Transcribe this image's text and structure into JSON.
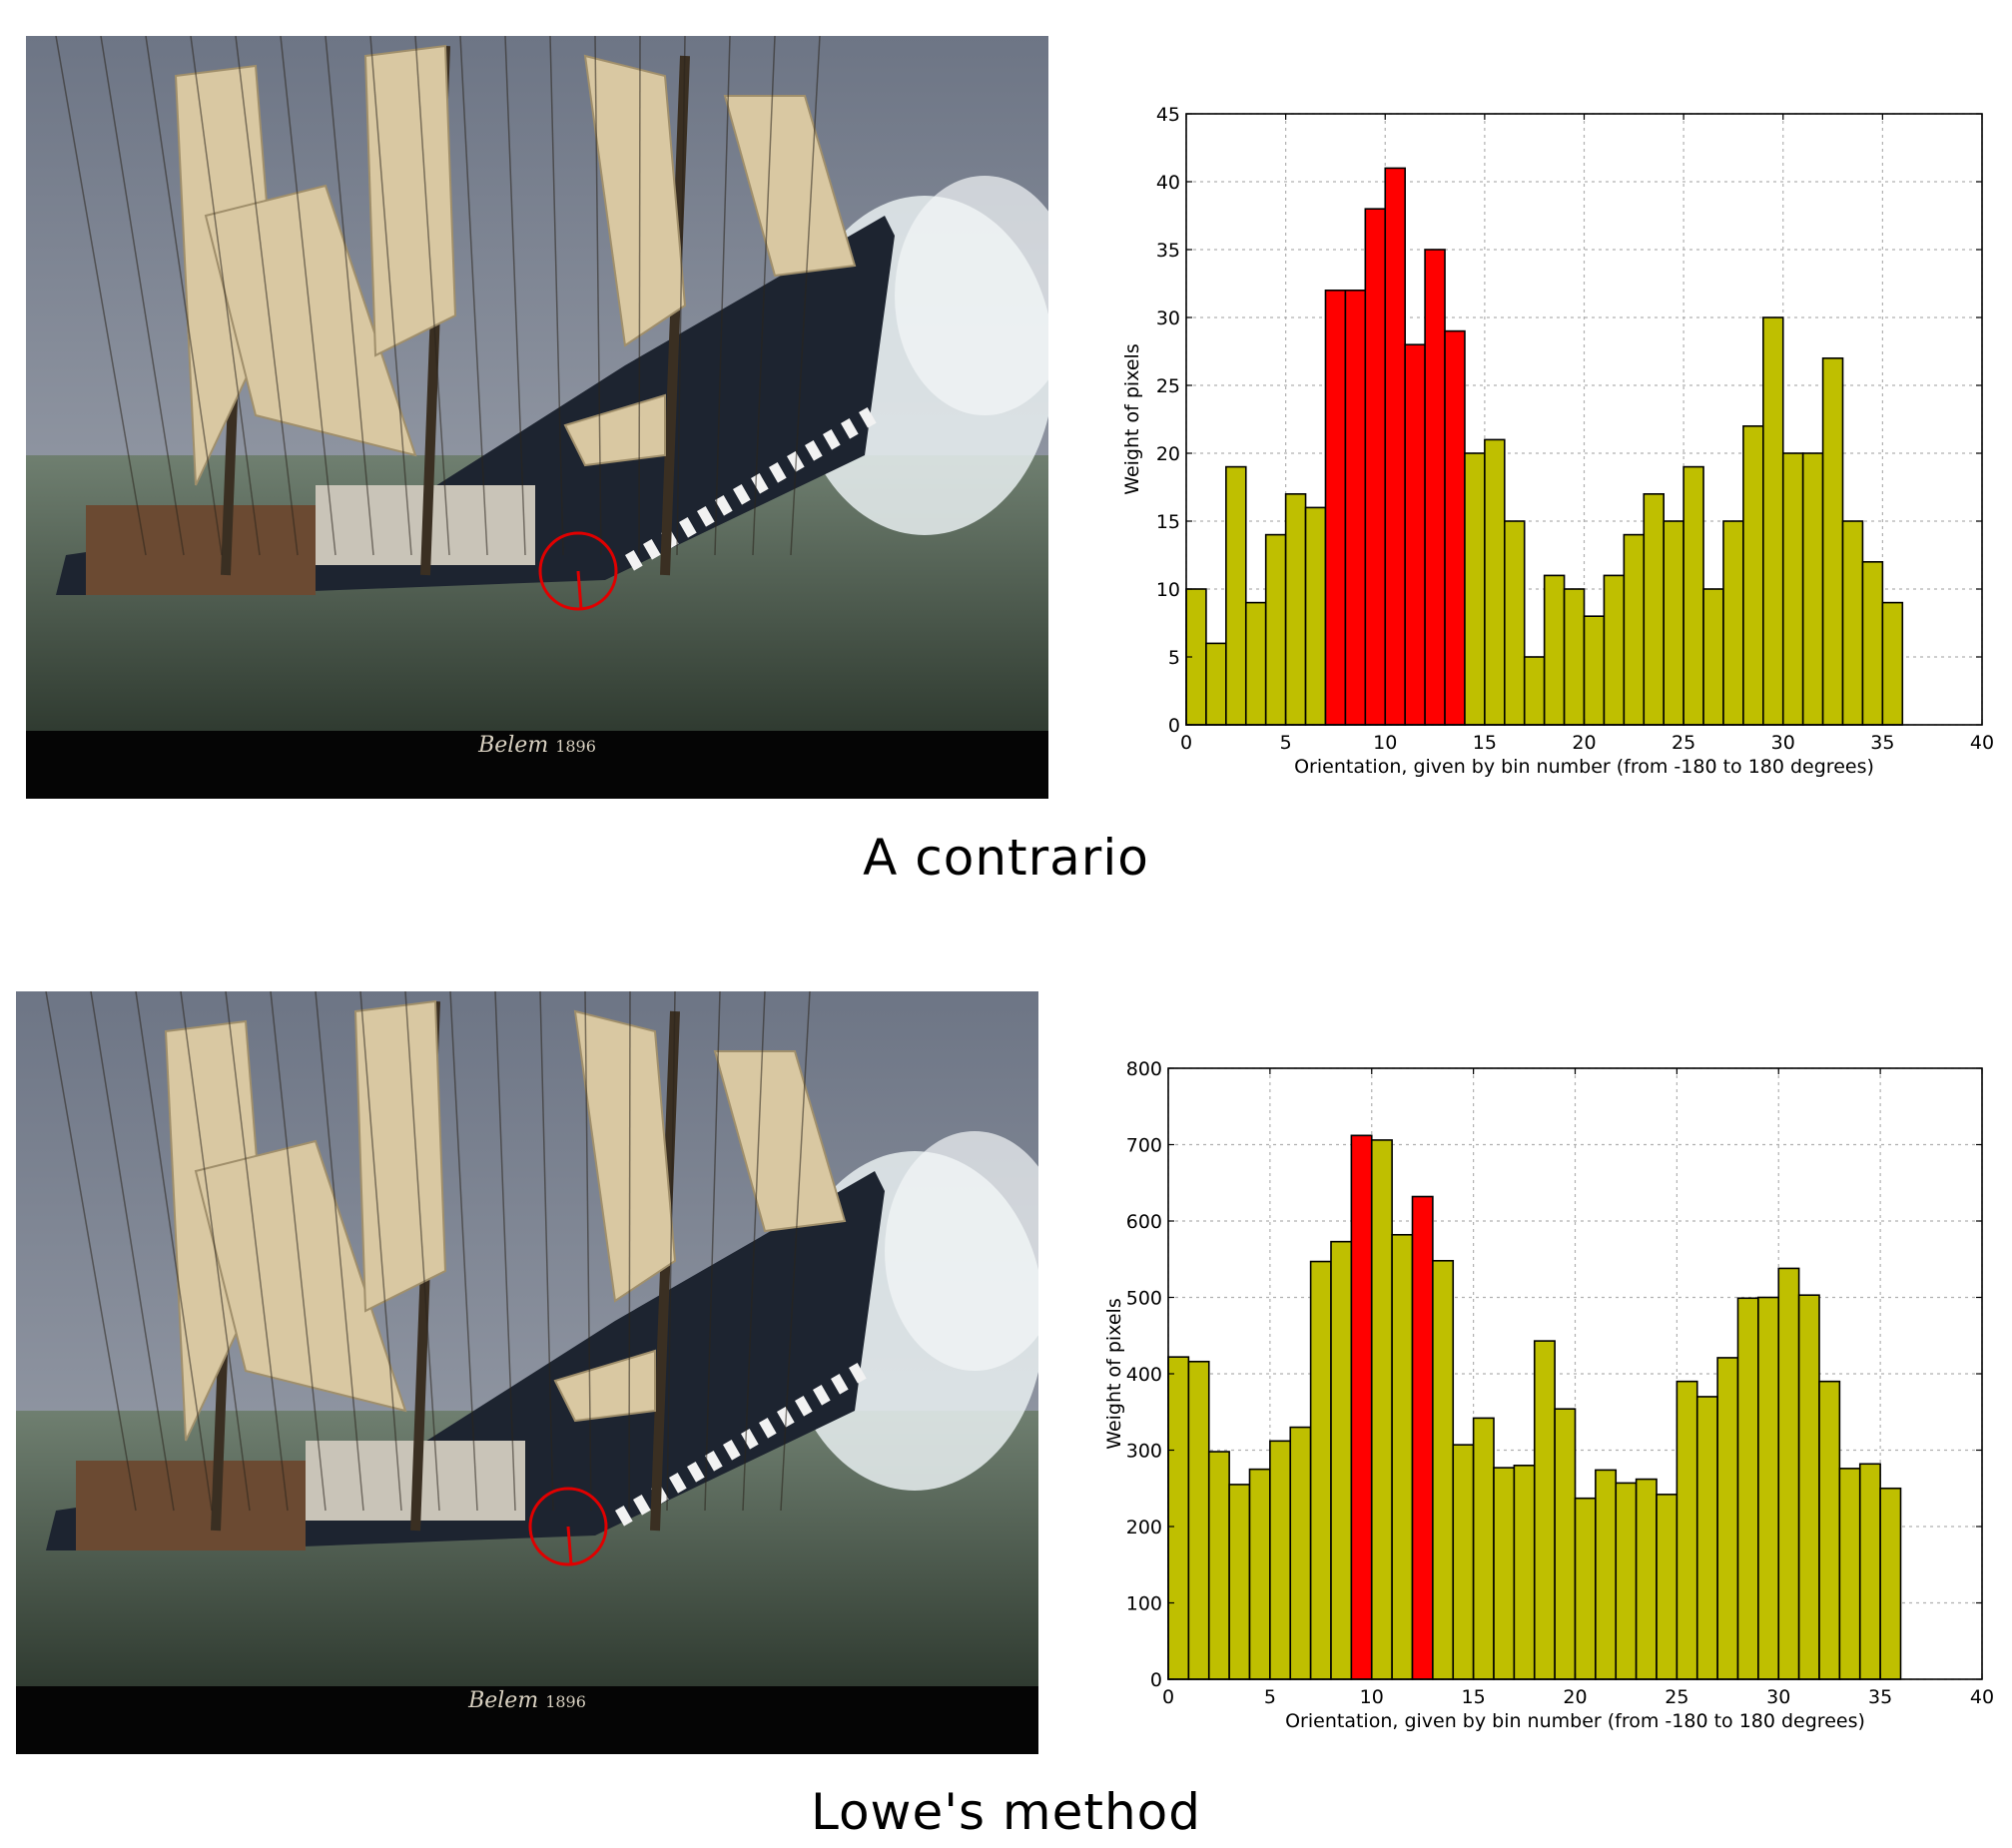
{
  "panels": [
    {
      "caption": "A contrario",
      "photo": {
        "title": "Belem",
        "year": "1896",
        "colors": {
          "sky": "#7f8796",
          "sea": "#556a5a",
          "hull": "#1d2430",
          "sail": "#d9c8a2",
          "deck": "#6b4a32",
          "banner": "#050505",
          "keypoint": "#e00000"
        }
      }
    },
    {
      "caption": "Lowe's  method",
      "photo": {
        "title": "Belem",
        "year": "1896",
        "colors": {
          "sky": "#7f8796",
          "sea": "#556a5a",
          "hull": "#1d2430",
          "sail": "#d9c8a2",
          "deck": "#6b4a32",
          "banner": "#050505",
          "keypoint": "#e00000"
        }
      }
    }
  ],
  "chart_data": [
    {
      "type": "bar",
      "xlabel": "Orientation, given by bin number (from -180 to 180 degrees)",
      "ylabel": "Weight of pixels",
      "xlim": [
        0,
        40
      ],
      "ylim": [
        0,
        45
      ],
      "xticks": [
        0,
        5,
        10,
        15,
        20,
        25,
        30,
        35,
        40
      ],
      "yticks": [
        0,
        5,
        10,
        15,
        20,
        25,
        30,
        35,
        40,
        45
      ],
      "grid": true,
      "bin_width": 1,
      "values": [
        10,
        6,
        19,
        9,
        14,
        17,
        16,
        32,
        32,
        38,
        41,
        28,
        35,
        29,
        20,
        21,
        15,
        5,
        11,
        10,
        8,
        11,
        14,
        17,
        15,
        19,
        10,
        15,
        22,
        30,
        20,
        20,
        27,
        15,
        12,
        9
      ],
      "highlight_bins": [
        7,
        8,
        9,
        10,
        11,
        12,
        13
      ],
      "colors": {
        "bar": "#bfbf00",
        "highlight": "#ff0000",
        "edge": "#000000",
        "grid": "#b0b0b0"
      }
    },
    {
      "type": "bar",
      "xlabel": "Orientation, given by bin number (from -180 to 180 degrees)",
      "ylabel": "Weight of pixels",
      "xlim": [
        0,
        40
      ],
      "ylim": [
        0,
        800
      ],
      "xticks": [
        0,
        5,
        10,
        15,
        20,
        25,
        30,
        35,
        40
      ],
      "yticks": [
        0,
        100,
        200,
        300,
        400,
        500,
        600,
        700,
        800
      ],
      "grid": true,
      "bin_width": 1,
      "values": [
        422,
        416,
        298,
        255,
        275,
        312,
        330,
        547,
        573,
        712,
        706,
        582,
        632,
        548,
        307,
        342,
        277,
        280,
        443,
        354,
        237,
        274,
        257,
        262,
        242,
        390,
        370,
        421,
        499,
        500,
        538,
        503,
        390,
        276,
        282,
        250
      ],
      "highlight_bins": [
        9,
        12
      ],
      "colors": {
        "bar": "#bfbf00",
        "highlight": "#ff0000",
        "edge": "#000000",
        "grid": "#b0b0b0"
      }
    }
  ]
}
